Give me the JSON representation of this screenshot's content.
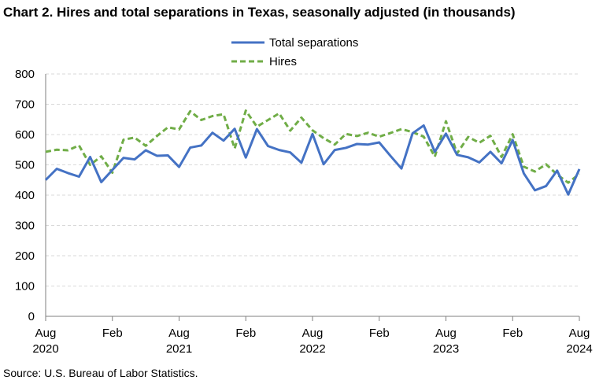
{
  "title": "Chart 2. Hires and total separations in Texas, seasonally adjusted (in thousands)",
  "source": "Source: U.S. Bureau of Labor Statistics.",
  "colors": {
    "separations": "#4472c4",
    "hires": "#70ad47",
    "grid": "#d9d9d9",
    "axis": "#7f7f7f"
  },
  "chart_data": {
    "type": "line",
    "title": "Chart 2. Hires and total separations in Texas, seasonally adjusted (in thousands)",
    "ylim": [
      0,
      800
    ],
    "yticks": [
      0,
      100,
      200,
      300,
      400,
      500,
      600,
      700,
      800
    ],
    "grid": "horizontal dashed",
    "legend_position": "top-center",
    "x": [
      "Aug 2020",
      "Sep 2020",
      "Oct 2020",
      "Nov 2020",
      "Dec 2020",
      "Jan 2021",
      "Feb 2021",
      "Mar 2021",
      "Apr 2021",
      "May 2021",
      "Jun 2021",
      "Jul 2021",
      "Aug 2021",
      "Sep 2021",
      "Oct 2021",
      "Nov 2021",
      "Dec 2021",
      "Jan 2022",
      "Feb 2022",
      "Mar 2022",
      "Apr 2022",
      "May 2022",
      "Jun 2022",
      "Jul 2022",
      "Aug 2022",
      "Sep 2022",
      "Oct 2022",
      "Nov 2022",
      "Dec 2022",
      "Jan 2023",
      "Feb 2023",
      "Mar 2023",
      "Apr 2023",
      "May 2023",
      "Jun 2023",
      "Jul 2023",
      "Aug 2023",
      "Sep 2023",
      "Oct 2023",
      "Nov 2023",
      "Dec 2023",
      "Jan 2024",
      "Feb 2024",
      "Mar 2024",
      "Apr 2024",
      "May 2024",
      "Jun 2024",
      "Jul 2024",
      "Aug 2024"
    ],
    "x_tick_labels": [
      {
        "index": 0,
        "month": "Aug",
        "year": "2020"
      },
      {
        "index": 6,
        "month": "Feb",
        "year": ""
      },
      {
        "index": 12,
        "month": "Aug",
        "year": "2021"
      },
      {
        "index": 18,
        "month": "Feb",
        "year": ""
      },
      {
        "index": 24,
        "month": "Aug",
        "year": "2022"
      },
      {
        "index": 30,
        "month": "Feb",
        "year": ""
      },
      {
        "index": 36,
        "month": "Aug",
        "year": "2023"
      },
      {
        "index": 42,
        "month": "Feb",
        "year": ""
      },
      {
        "index": 48,
        "month": "Aug",
        "year": "2024"
      }
    ],
    "series": [
      {
        "name": "Total separations",
        "style": "solid",
        "values": [
          450,
          487,
          473,
          461,
          526,
          443,
          483,
          523,
          518,
          548,
          530,
          531,
          493,
          557,
          564,
          606,
          580,
          619,
          524,
          618,
          562,
          549,
          541,
          507,
          602,
          502,
          549,
          556,
          569,
          567,
          574,
          530,
          488,
          604,
          630,
          543,
          603,
          533,
          525,
          508,
          543,
          505,
          582,
          472,
          416,
          430,
          481,
          402,
          486
        ]
      },
      {
        "name": "Hires",
        "style": "dashed",
        "values": [
          543,
          550,
          548,
          564,
          500,
          528,
          474,
          583,
          590,
          563,
          595,
          624,
          617,
          677,
          648,
          661,
          667,
          554,
          679,
          626,
          648,
          670,
          613,
          656,
          614,
          588,
          567,
          602,
          595,
          606,
          593,
          605,
          618,
          608,
          593,
          527,
          644,
          538,
          592,
          573,
          596,
          526,
          601,
          494,
          478,
          502,
          468,
          441,
          470
        ]
      }
    ]
  }
}
